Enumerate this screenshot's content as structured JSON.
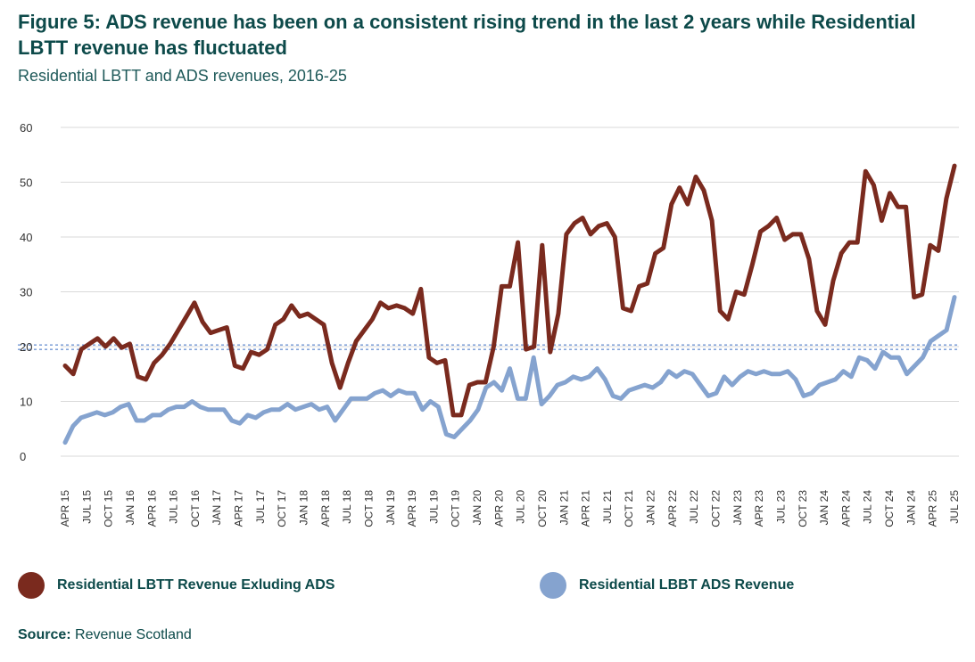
{
  "title": "Figure 5: ADS revenue has been on a consistent rising trend in the last 2 years while Residential LBTT revenue has fluctuated",
  "subtitle": "Residential LBTT and ADS revenues, 2016-25",
  "source_label": "Source:",
  "source_text": "Revenue Scotland",
  "chart_data": {
    "type": "line",
    "ylim": [
      0,
      60
    ],
    "yticks": [
      0,
      10,
      20,
      30,
      40,
      50,
      60
    ],
    "grid": true,
    "legend_position": "bottom",
    "x_labels": [
      "APR 15",
      "JUL 15",
      "OCT 15",
      "JAN 16",
      "APR 16",
      "JUL 16",
      "OCT 16",
      "JAN 17",
      "APR 17",
      "JUL 17",
      "OCT 17",
      "JAN 18",
      "APR 18",
      "JUL 18",
      "OCT 18",
      "JAN 19",
      "APR 19",
      "JUL 19",
      "OCT 19",
      "JAN 20",
      "APR 20",
      "JUL 20",
      "OCT 20",
      "JAN 21",
      "APR 21",
      "JUL 21",
      "OCT 21",
      "JAN 22",
      "APR 22",
      "JUL 22",
      "OCT 22",
      "JAN 23",
      "APR 23",
      "JUL 23",
      "OCT 23",
      "JAN 24",
      "APR 24",
      "JUL 24",
      "OCT 24",
      "JAN 24",
      "APR 25",
      "JUL 25"
    ],
    "series": [
      {
        "name": "Residential LBTT Revenue Exluding ADS",
        "color": "#7a2a1e",
        "values": [
          16.5,
          15,
          19.5,
          20.5,
          21.5,
          20,
          21.5,
          19.8,
          20.5,
          14.5,
          14,
          17,
          18.5,
          20.5,
          23,
          25.5,
          28,
          24.5,
          22.5,
          23,
          23.5,
          16.5,
          16,
          19,
          18.5,
          19.5,
          24,
          25,
          27.5,
          25.5,
          26,
          25,
          24,
          17,
          12.5,
          17,
          21,
          23,
          25,
          28,
          27,
          27.5,
          27,
          26,
          30.5,
          18,
          17,
          17.5,
          7.5,
          7.5,
          13,
          13.5,
          13.5,
          20,
          31,
          31,
          39,
          19.5,
          20,
          38.5,
          19,
          26,
          40.5,
          42.5,
          43.5,
          40.5,
          42,
          42.5,
          40,
          27,
          26.5,
          31,
          31.5,
          37,
          38,
          46,
          49,
          46,
          51,
          48.5,
          43,
          26.5,
          25,
          30,
          29.5,
          35,
          41,
          42,
          43.5,
          39.5,
          40.5,
          40.5,
          36,
          26.5,
          24,
          32,
          37,
          39,
          39,
          52,
          49.5,
          43,
          48,
          45.5,
          45.5,
          29,
          29.5,
          38.5,
          37.5,
          47,
          53
        ]
      },
      {
        "name": "Residential LBBT ADS Revenue",
        "color": "#85a3cf",
        "values": [
          2.5,
          5.5,
          7,
          7.5,
          8,
          7.5,
          8,
          9,
          9.5,
          6.5,
          6.5,
          7.5,
          7.5,
          8.5,
          9,
          9,
          10,
          9,
          8.5,
          8.5,
          8.5,
          6.5,
          6,
          7.5,
          7,
          8,
          8.5,
          8.5,
          9.5,
          8.5,
          9,
          9.5,
          8.5,
          9,
          6.5,
          8.5,
          10.5,
          10.5,
          10.5,
          11.5,
          12,
          11,
          12,
          11.5,
          11.5,
          8.5,
          10,
          9,
          4,
          3.5,
          5,
          6.5,
          8.5,
          12.5,
          13.5,
          12,
          16,
          10.5,
          10.5,
          18,
          9.5,
          11,
          13,
          13.5,
          14.5,
          14,
          14.5,
          16,
          14,
          11,
          10.5,
          12,
          12.5,
          13,
          12.5,
          13.5,
          15.5,
          14.5,
          15.5,
          15,
          13,
          11,
          11.5,
          14.5,
          13,
          14.5,
          15.5,
          15,
          15.5,
          15,
          15,
          15.5,
          14,
          11,
          11.5,
          13,
          13.5,
          14,
          15.5,
          14.5,
          18,
          17.5,
          16,
          19,
          18,
          18,
          15,
          16.5,
          18,
          21,
          22,
          23,
          29
        ]
      }
    ],
    "reference_lines": [
      19.5,
      20.3
    ]
  },
  "legend": [
    {
      "label": "Residential LBTT Revenue Exluding ADS",
      "color": "#7a2a1e"
    },
    {
      "label": "Residential LBBT ADS Revenue",
      "color": "#85a3cf"
    }
  ]
}
